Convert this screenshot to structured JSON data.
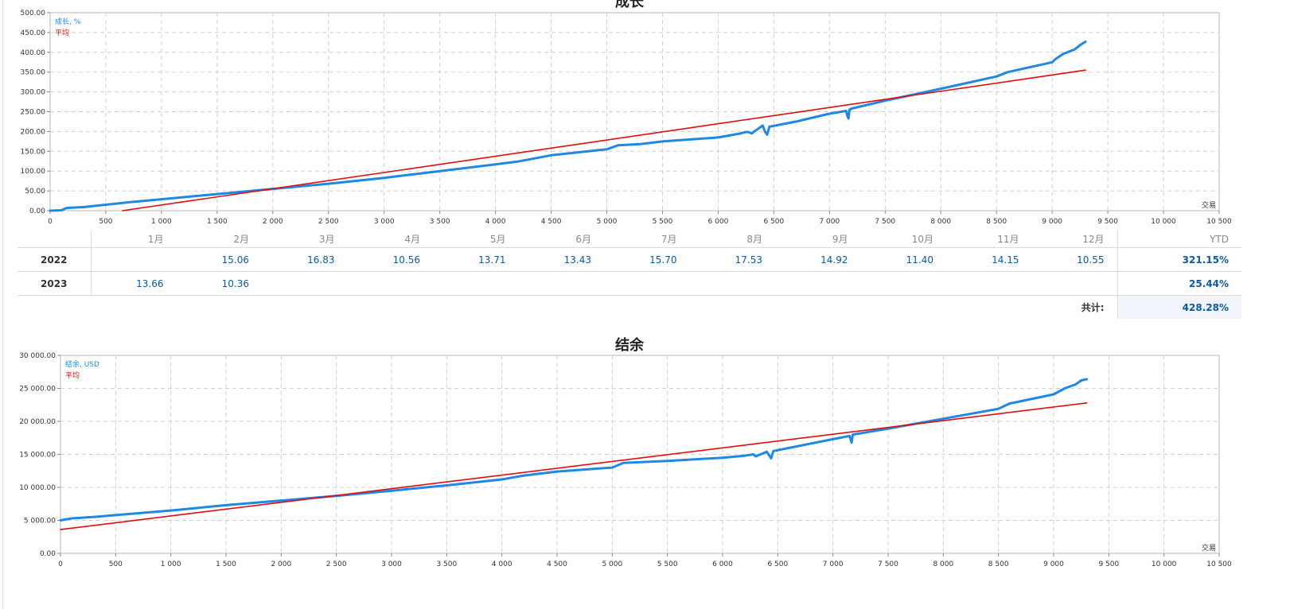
{
  "colors": {
    "series": "#1e88e5",
    "average": "#e30b0b",
    "grid": "#d0d0d0",
    "text": "#333333",
    "link": "#0b5aa6"
  },
  "growth": {
    "title": "成长",
    "legend_series": "成长, %",
    "legend_avg": "平均",
    "x_unit_label": "交易"
  },
  "balance": {
    "title": "结余",
    "legend_series": "结余, USD",
    "legend_avg": "平均",
    "x_unit_label": "交易"
  },
  "table": {
    "months": [
      "1月",
      "2月",
      "3月",
      "4月",
      "5月",
      "6月",
      "7月",
      "8月",
      "9月",
      "10月",
      "11月",
      "12月"
    ],
    "ytd_header": "YTD",
    "rows": [
      {
        "year": "2022",
        "values": [
          "",
          "15.06",
          "16.83",
          "10.56",
          "13.71",
          "13.43",
          "15.70",
          "17.53",
          "14.92",
          "11.40",
          "14.15",
          "10.55"
        ],
        "ytd": "321.15%"
      },
      {
        "year": "2023",
        "values": [
          "13.66",
          "10.36",
          "",
          "",
          "",
          "",
          "",
          "",
          "",
          "",
          "",
          ""
        ],
        "ytd": "25.44%"
      }
    ],
    "total_label": "共计:",
    "total_value": "428.28%"
  },
  "chart_data": [
    {
      "type": "line",
      "title": "成长",
      "xlabel": "交易",
      "ylabel": "",
      "xlim": [
        0,
        10500
      ],
      "ylim": [
        0,
        500
      ],
      "x_ticks": [
        0,
        500,
        1000,
        1500,
        2000,
        2500,
        3000,
        3500,
        4000,
        4500,
        5000,
        5500,
        6000,
        6500,
        7000,
        7500,
        8000,
        8500,
        9000,
        9500,
        10000,
        10500
      ],
      "x_tick_labels": [
        "0",
        "500",
        "1 000",
        "1 500",
        "2 000",
        "2 500",
        "3 000",
        "3 500",
        "4 000",
        "4 500",
        "5 000",
        "5 500",
        "6 000",
        "6 500",
        "7 000",
        "7 500",
        "8 000",
        "8 500",
        "9 000",
        "9 500",
        "10 000",
        "10 500"
      ],
      "y_ticks": [
        0,
        50,
        100,
        150,
        200,
        250,
        300,
        350,
        400,
        450,
        500
      ],
      "y_tick_labels": [
        "0.00",
        "50.00",
        "100.00",
        "150.00",
        "200.00",
        "250.00",
        "300.00",
        "350.00",
        "400.00",
        "450.00",
        "500.00"
      ],
      "grid": true,
      "legend": "top-left",
      "series": [
        {
          "name": "成长, %",
          "color": "#1e88e5",
          "x": [
            0,
            100,
            150,
            300,
            500,
            700,
            1000,
            1500,
            2000,
            2500,
            3000,
            3500,
            4000,
            4200,
            4500,
            5000,
            5100,
            5300,
            5500,
            6000,
            6200,
            6250,
            6280,
            6300,
            6400,
            6420,
            6440,
            6460,
            6700,
            7000,
            7150,
            7160,
            7170,
            7180,
            7200,
            7500,
            8000,
            8500,
            8600,
            9000,
            9030,
            9100,
            9200,
            9250,
            9300
          ],
          "y": [
            0,
            1,
            7,
            9,
            15,
            21,
            29,
            42,
            55,
            68,
            83,
            100,
            117,
            124,
            140,
            155,
            165,
            168,
            175,
            185,
            195,
            199,
            198,
            195,
            215,
            200,
            192,
            212,
            225,
            245,
            252,
            240,
            233,
            255,
            258,
            278,
            308,
            339,
            350,
            375,
            383,
            396,
            407,
            418,
            427
          ]
        },
        {
          "name": "平均",
          "color": "#e30b0b",
          "x": [
            650,
            9300
          ],
          "y": [
            0,
            355
          ]
        }
      ]
    },
    {
      "type": "line",
      "title": "结余",
      "xlabel": "交易",
      "ylabel": "",
      "xlim": [
        0,
        10500
      ],
      "ylim": [
        0,
        30000
      ],
      "x_ticks": [
        0,
        500,
        1000,
        1500,
        2000,
        2500,
        3000,
        3500,
        4000,
        4500,
        5000,
        5500,
        6000,
        6500,
        7000,
        7500,
        8000,
        8500,
        9000,
        9500,
        10000,
        10500
      ],
      "x_tick_labels": [
        "0",
        "500",
        "1 000",
        "1 500",
        "2 000",
        "2 500",
        "3 000",
        "3 500",
        "4 000",
        "4 500",
        "5 000",
        "5 500",
        "6 000",
        "6 500",
        "7 000",
        "7 500",
        "8 000",
        "8 500",
        "9 000",
        "9 500",
        "10 000",
        "10 500"
      ],
      "y_ticks": [
        0,
        5000,
        10000,
        15000,
        20000,
        25000,
        30000
      ],
      "y_tick_labels": [
        "0.00",
        "5 000.00",
        "10 000.00",
        "15 000.00",
        "20 000.00",
        "25 000.00",
        "30 000.00"
      ],
      "grid": true,
      "legend": "top-left",
      "series": [
        {
          "name": "结余, USD",
          "color": "#1e88e5",
          "x": [
            0,
            100,
            300,
            500,
            1000,
            1500,
            2000,
            2500,
            3000,
            3500,
            4000,
            4200,
            4500,
            5000,
            5100,
            5500,
            6000,
            6200,
            6280,
            6300,
            6400,
            6420,
            6440,
            6460,
            7000,
            7150,
            7170,
            7180,
            7500,
            8000,
            8500,
            8600,
            9000,
            9100,
            9200,
            9250,
            9300
          ],
          "y": [
            5000,
            5300,
            5500,
            5800,
            6500,
            7300,
            8000,
            8700,
            9500,
            10300,
            11200,
            11800,
            12400,
            13000,
            13700,
            14000,
            14500,
            14800,
            15000,
            14700,
            15400,
            14900,
            14400,
            15500,
            17300,
            17800,
            16800,
            18000,
            18900,
            20400,
            21900,
            22700,
            24100,
            25000,
            25600,
            26200,
            26400
          ]
        },
        {
          "name": "平均",
          "color": "#e30b0b",
          "x": [
            0,
            9300
          ],
          "y": [
            3600,
            22800
          ]
        }
      ]
    }
  ]
}
